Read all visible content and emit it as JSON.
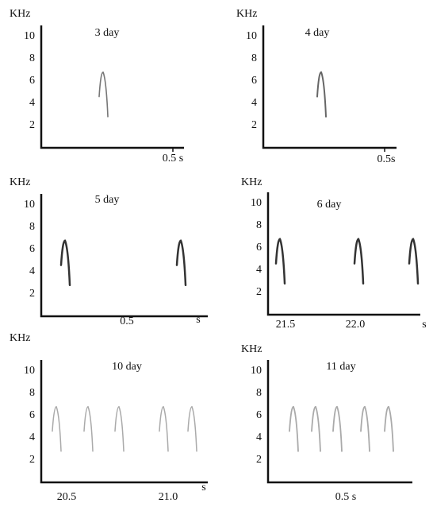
{
  "panels": [
    {
      "y_unit": "KHz",
      "title": "3 day",
      "yticks": [
        10,
        8,
        6,
        4,
        2
      ],
      "x_labels": [
        "0.5 s"
      ]
    },
    {
      "y_unit": "KHz",
      "title": "4 day",
      "yticks": [
        10,
        8,
        6,
        4,
        2
      ],
      "x_labels": [
        "0.5s"
      ]
    },
    {
      "y_unit": "KHz",
      "title": "5 day",
      "yticks": [
        10,
        8,
        6,
        4,
        2
      ],
      "x_labels": [
        "0.5",
        "s"
      ]
    },
    {
      "y_unit": "KHz",
      "title": "6 day",
      "yticks": [
        10,
        8,
        6,
        4,
        2
      ],
      "x_labels": [
        "21.5",
        "22.0",
        "s"
      ]
    },
    {
      "y_unit": "KHz",
      "title": "10 day",
      "yticks": [
        10,
        8,
        6,
        4,
        2
      ],
      "x_labels": [
        "20.5",
        "21.0",
        "s"
      ]
    },
    {
      "y_unit": "KHz",
      "title": "11 day",
      "yticks": [
        10,
        8,
        6,
        4,
        2
      ],
      "x_labels": [
        "0.5 s"
      ]
    }
  ]
}
